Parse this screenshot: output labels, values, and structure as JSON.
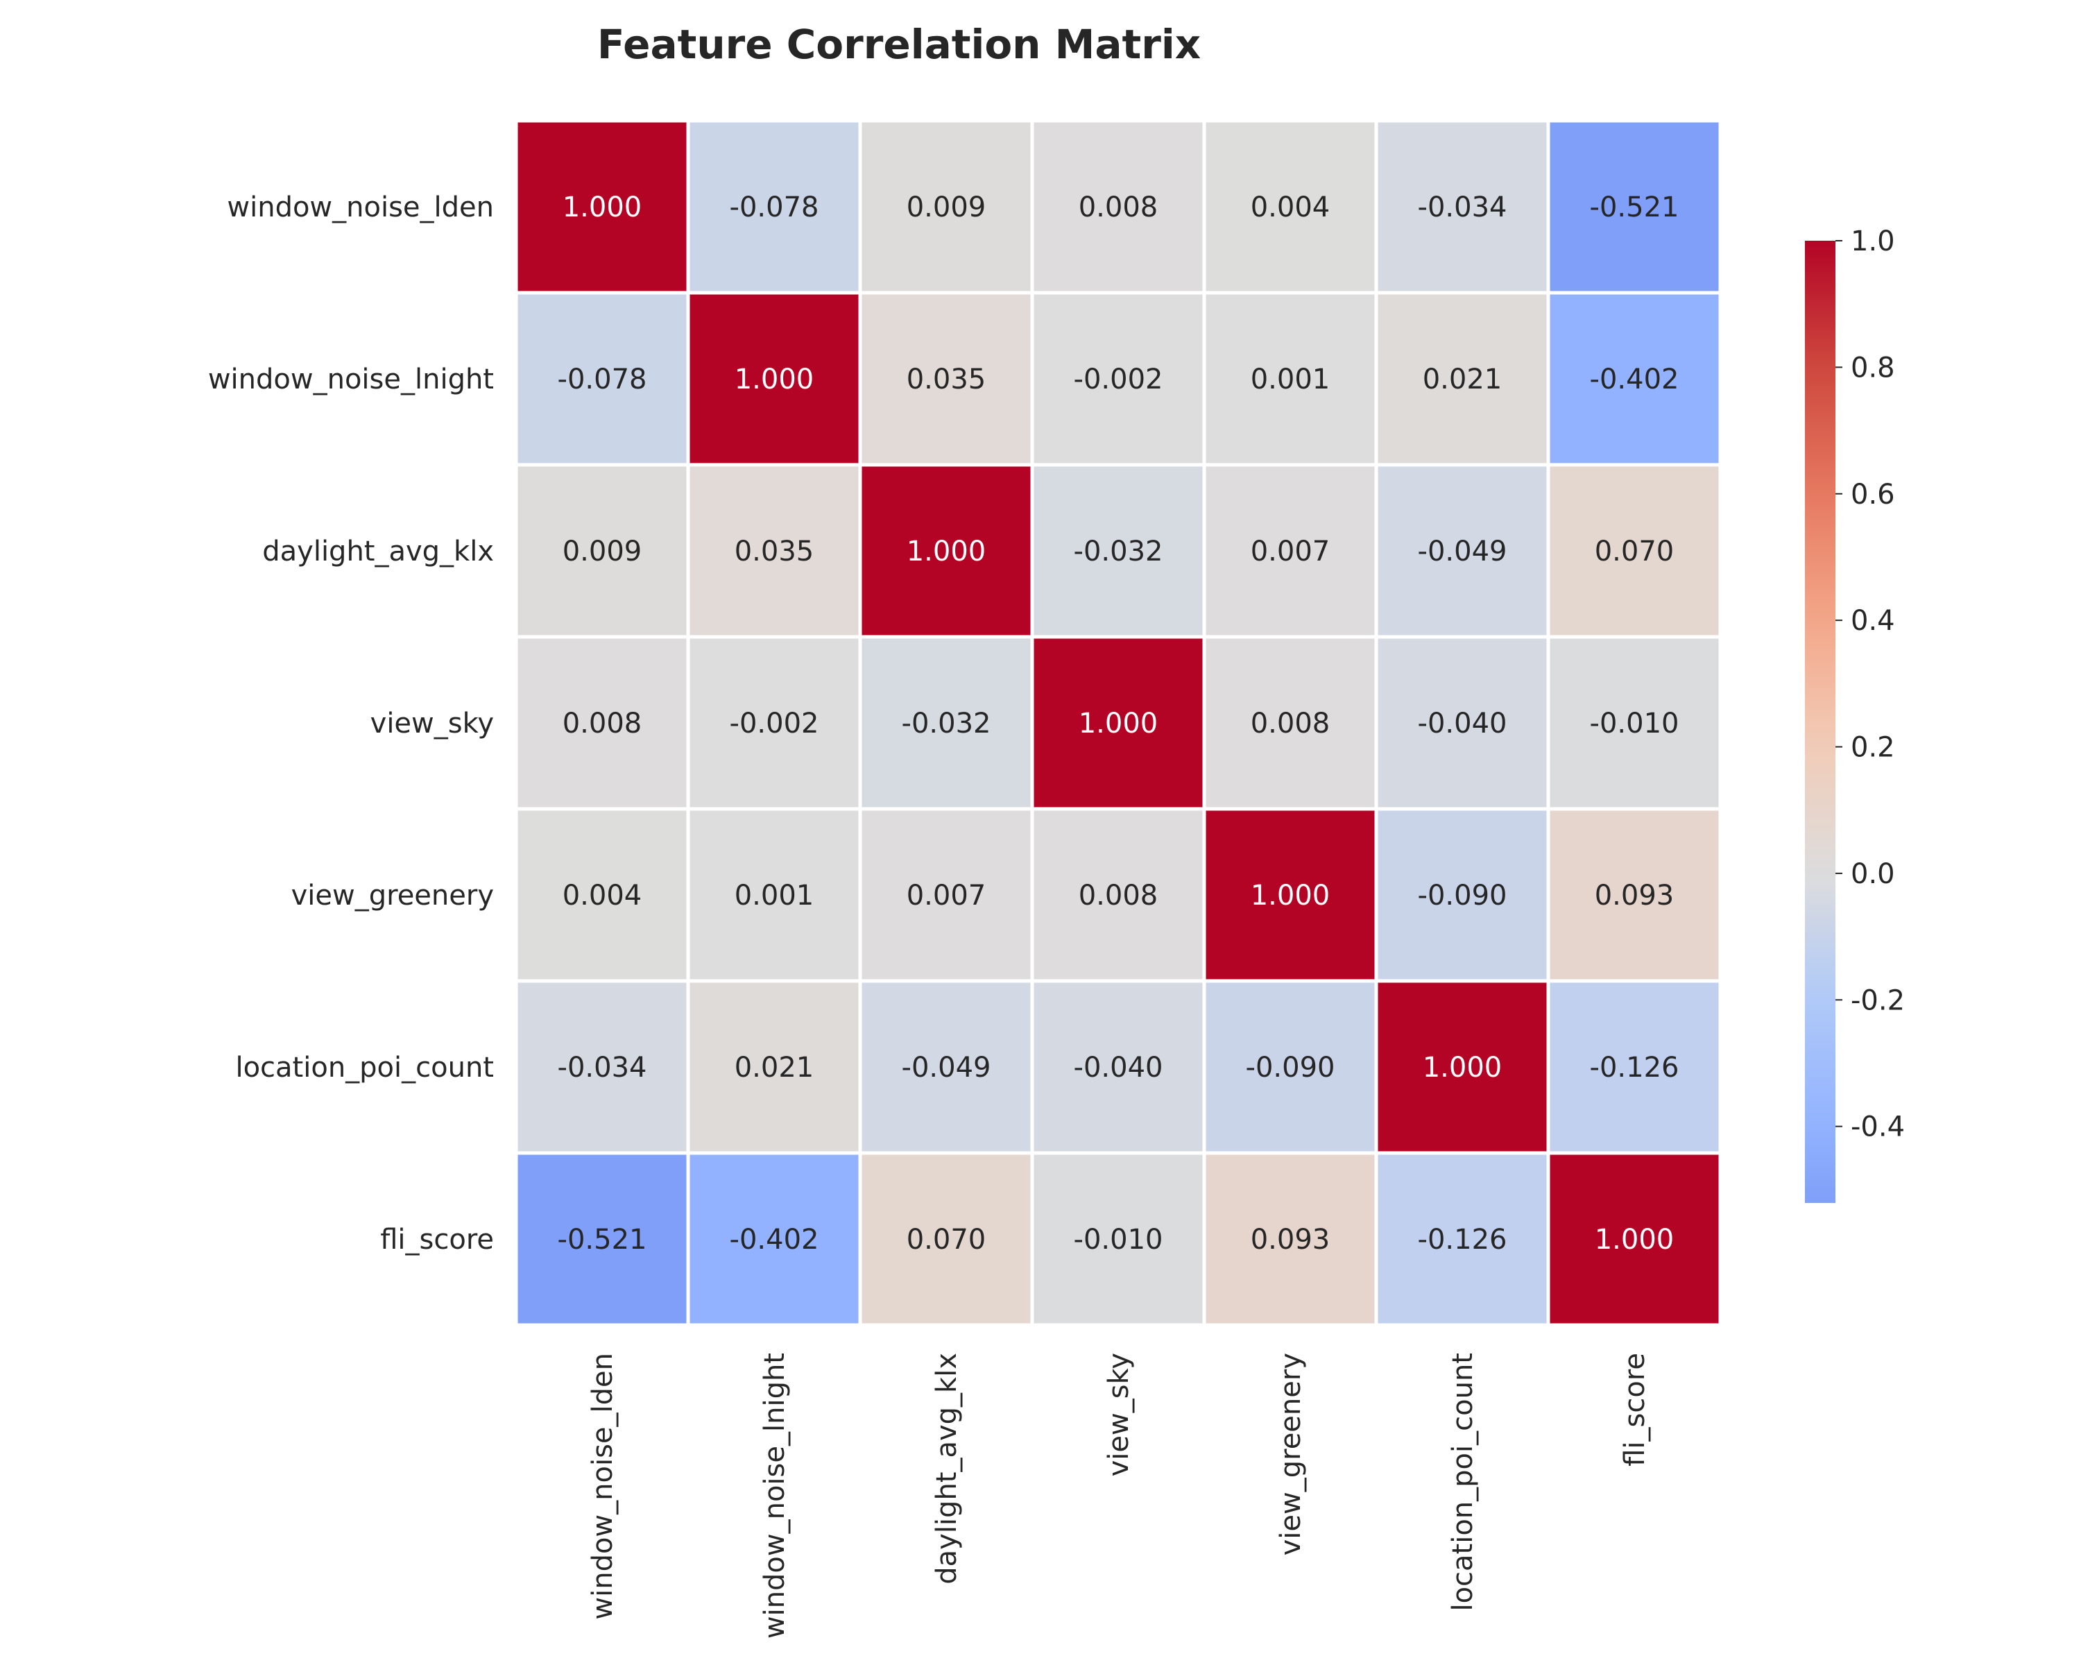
{
  "chart_data": {
    "type": "heatmap",
    "title": "Feature Correlation Matrix",
    "xlabel": "",
    "ylabel": "",
    "labels": [
      "window_noise_lden",
      "window_noise_lnight",
      "daylight_avg_klx",
      "view_sky",
      "view_greenery",
      "location_poi_count",
      "fli_score"
    ],
    "matrix": [
      [
        1.0,
        -0.078,
        0.009,
        0.008,
        0.004,
        -0.034,
        -0.521
      ],
      [
        -0.078,
        1.0,
        0.035,
        -0.002,
        0.001,
        0.021,
        -0.402
      ],
      [
        0.009,
        0.035,
        1.0,
        -0.032,
        0.007,
        -0.049,
        0.07
      ],
      [
        0.008,
        -0.002,
        -0.032,
        1.0,
        0.008,
        -0.04,
        -0.01
      ],
      [
        0.004,
        0.001,
        0.007,
        0.008,
        1.0,
        -0.09,
        0.093
      ],
      [
        -0.034,
        0.021,
        -0.049,
        -0.04,
        -0.09,
        1.0,
        -0.126
      ],
      [
        -0.521,
        -0.402,
        0.07,
        -0.01,
        0.093,
        -0.126,
        1.0
      ]
    ],
    "value_format": "0.000",
    "colormap": "coolwarm",
    "center": 0,
    "vmin": -0.521,
    "vmax": 1.0,
    "colorbar_ticks": [
      1.0,
      0.8,
      0.6,
      0.4,
      0.2,
      0.0,
      -0.2,
      -0.4
    ],
    "colorbar_tick_labels": [
      "1.0",
      "0.8",
      "0.6",
      "0.4",
      "0.2",
      "0.0",
      "-0.2",
      "-0.4"
    ],
    "grid": false,
    "legend": "colorbar-right"
  }
}
